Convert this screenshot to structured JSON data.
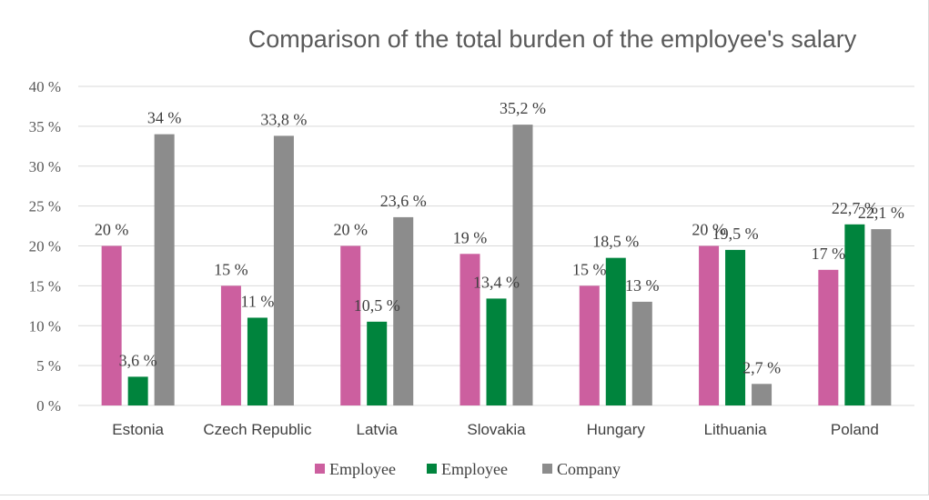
{
  "chart_data": {
    "type": "bar",
    "title": "Comparison of the total burden of the employee's salary",
    "xlabel": "",
    "ylabel": "",
    "categories": [
      "Estonia",
      "Czech Republic",
      "Latvia",
      "Slovakia",
      "Hungary",
      "Lithuania",
      "Poland"
    ],
    "series": [
      {
        "name": "Employee",
        "color": "#cc5f9f",
        "values": [
          20,
          15,
          20,
          19,
          15,
          20,
          17
        ],
        "labels": [
          "20 %",
          "15 %",
          "20 %",
          "19 %",
          "15 %",
          "20 %",
          "17 %"
        ]
      },
      {
        "name": "Employee",
        "color": "#00843d",
        "values": [
          3.6,
          11,
          10.5,
          13.4,
          18.5,
          19.5,
          22.7
        ],
        "labels": [
          "3,6 %",
          "11 %",
          "10,5 %",
          "13,4 %",
          "18,5 %",
          "19,5 %",
          "22,7 %"
        ]
      },
      {
        "name": "Company",
        "color": "#8c8c8c",
        "values": [
          34,
          33.8,
          23.6,
          35.2,
          13,
          2.7,
          22.1
        ],
        "labels": [
          "34 %",
          "33,8 %",
          "23,6 %",
          "35,2 %",
          "13 %",
          "2,7 %",
          "22,1 %"
        ]
      }
    ],
    "ylim": [
      0,
      40
    ],
    "yticks": [
      0,
      5,
      10,
      15,
      20,
      25,
      30,
      35,
      40
    ],
    "ytick_labels": [
      "0 %",
      "5 %",
      "10 %",
      "15 %",
      "20 %",
      "25 %",
      "30 %",
      "35 %",
      "40 %"
    ],
    "grid": true,
    "grid_color": "#d9d9d9",
    "legend_position": "bottom"
  }
}
